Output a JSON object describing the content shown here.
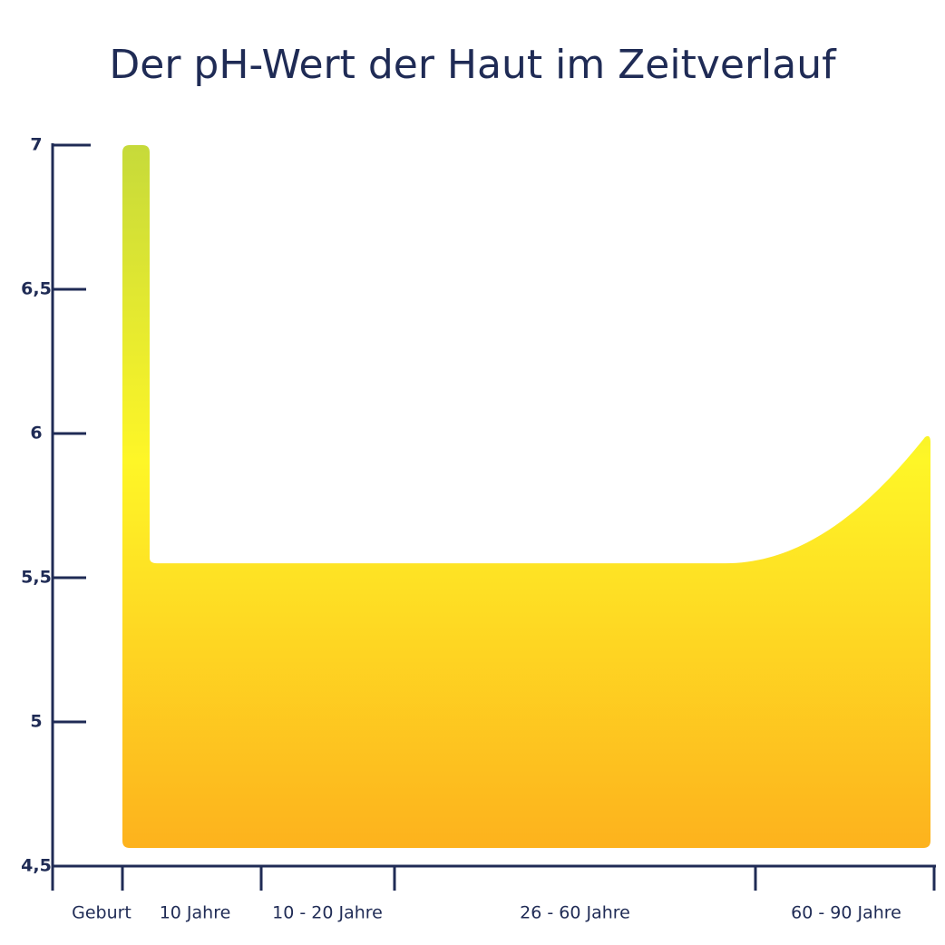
{
  "chart_data": {
    "type": "area",
    "title": "Der pH-Wert der Haut im Zeitverlauf",
    "categories": [
      "Geburt",
      "10 Jahre",
      "10 - 20 Jahre",
      "26 - 60 Jahre",
      "60 - 90 Jahre"
    ],
    "values": [
      7,
      5.55,
      5.55,
      5.55,
      6
    ],
    "ylim": [
      4.5,
      7
    ],
    "yticks": [
      {
        "value": 4.5,
        "label": "4,5"
      },
      5,
      {
        "value": 5.5,
        "label": "5,5"
      },
      6,
      {
        "value": 6.5,
        "label": "6,5"
      },
      7
    ],
    "colors": [
      "#fdb21d",
      "#fef627",
      "#c6da3a"
    ]
  }
}
